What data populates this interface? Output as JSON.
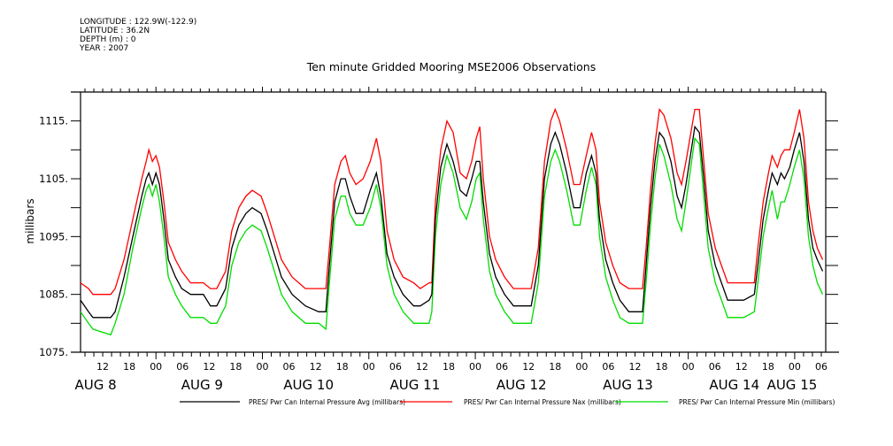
{
  "metadata": {
    "longitude": "LONGITUDE : 122.9W(-122.9)",
    "latitude": "LATITUDE : 36.2N",
    "depth": "DEPTH (m) : 0",
    "year": "YEAR : 2007"
  },
  "chart_data": {
    "type": "line",
    "title": "Ten minute Gridded Mooring MSE2006 Observations",
    "xlabel": "",
    "ylabel": "millibars",
    "x_units": "hours since Aug 8 00:00",
    "xlim": [
      7,
      175
    ],
    "ylim": [
      1075,
      1120
    ],
    "grid": false,
    "yticks": [
      1075,
      1085,
      1095,
      1105,
      1115
    ],
    "ytick_labels": [
      "1075.",
      "1085.",
      "1095.",
      "1105.",
      "1115."
    ],
    "xticks": [
      12,
      18,
      24,
      30,
      36,
      42,
      48,
      54,
      60,
      66,
      72,
      78,
      84,
      90,
      96,
      102,
      108,
      114,
      120,
      126,
      132,
      138,
      144,
      150,
      156,
      162,
      168,
      174
    ],
    "xtick_labels": [
      "12",
      "18",
      "00",
      "06",
      "12",
      "18",
      "00",
      "06",
      "12",
      "18",
      "00",
      "06",
      "12",
      "18",
      "00",
      "06",
      "12",
      "18",
      "00",
      "06",
      "12",
      "18",
      "00",
      "06",
      "12",
      "18",
      "00",
      "06"
    ],
    "day_labels": [
      {
        "hour": 12,
        "label": "AUG  8"
      },
      {
        "hour": 36,
        "label": "AUG  9"
      },
      {
        "hour": 60,
        "label": "AUG 10"
      },
      {
        "hour": 84,
        "label": "AUG 11"
      },
      {
        "hour": 108,
        "label": "AUG 12"
      },
      {
        "hour": 132,
        "label": "AUG 13"
      },
      {
        "hour": 156,
        "label": "AUG 14"
      },
      {
        "hour": 169,
        "label": "AUG 15"
      }
    ],
    "legend_position": "bottom",
    "series": [
      {
        "name": "PRES/ Pwr Can Internal Pressure Avg (millibars)",
        "color": "#000000",
        "x": [
          7,
          8.8,
          9.8,
          13.8,
          14.8,
          16.8,
          18.8,
          20.8,
          21.8,
          22.4,
          23.2,
          24,
          24.8,
          25.8,
          26.8,
          28.4,
          29.8,
          31.8,
          34.7,
          36.3,
          37.7,
          39.7,
          41.1,
          42.7,
          44.3,
          45.7,
          47.7,
          49.1,
          50.7,
          52.3,
          54.7,
          57.7,
          60.7,
          62.3,
          63.1,
          64.3,
          65.7,
          66.7,
          67.7,
          69.1,
          70.7,
          72.3,
          73.7,
          74.7,
          76.1,
          77.7,
          79.7,
          82.1,
          83.6,
          85.6,
          86.2,
          87,
          88.2,
          89.6,
          91,
          92.6,
          94,
          95.2,
          96.2,
          97,
          97.8,
          99.2,
          100.6,
          102.6,
          104.6,
          108.6,
          110.2,
          111.6,
          113,
          114,
          115,
          116.6,
          118.2,
          119.6,
          121,
          122.2,
          123.2,
          124,
          125.4,
          127,
          128.6,
          130.6,
          133.7,
          134.5,
          135.5,
          136.5,
          137.5,
          138.5,
          140.1,
          141.5,
          142.5,
          143.5,
          145.5,
          146.5,
          147.5,
          148.5,
          150.1,
          151.5,
          152.9,
          156.5,
          158.9,
          159.7,
          160.9,
          162.1,
          162.9,
          164.1,
          164.9,
          165.7,
          166.9,
          167.9,
          169.1,
          170.1,
          171.1,
          172.1,
          173.1,
          174.3
        ],
        "values": [
          1084,
          1082,
          1081,
          1081,
          1082,
          1088,
          1095,
          1102,
          1105,
          1106,
          1104,
          1106,
          1104,
          1098,
          1091,
          1088,
          1086,
          1085,
          1085,
          1083,
          1083,
          1086,
          1093,
          1097,
          1099,
          1100,
          1099,
          1096,
          1092,
          1088,
          1085,
          1083,
          1082,
          1082,
          1090,
          1101,
          1105,
          1105,
          1102,
          1099,
          1099,
          1103,
          1106,
          1102,
          1092,
          1088,
          1085,
          1083,
          1083,
          1084,
          1085,
          1098,
          1107,
          1111,
          1108,
          1103,
          1102,
          1105,
          1108,
          1108,
          1101,
          1092,
          1088,
          1085,
          1083,
          1083,
          1090,
          1105,
          1111,
          1113,
          1111,
          1106,
          1100,
          1100,
          1106,
          1109,
          1106,
          1098,
          1091,
          1087,
          1084,
          1082,
          1082,
          1090,
          1100,
          1108,
          1113,
          1112,
          1108,
          1102,
          1100,
          1104,
          1114,
          1113,
          1105,
          1096,
          1090,
          1087,
          1084,
          1084,
          1085,
          1090,
          1098,
          1103,
          1106,
          1104,
          1106,
          1105,
          1107,
          1110,
          1113,
          1108,
          1098,
          1093,
          1091,
          1089
        ]
      },
      {
        "name": "PRES/ Pwr Can Internal Pressure Nax (millibars)",
        "color": "#ff0000",
        "x": [
          7,
          8.8,
          9.8,
          13.8,
          14.8,
          16.8,
          18.8,
          20.8,
          21.8,
          22.4,
          23.2,
          24,
          24.8,
          25.8,
          26.8,
          28.4,
          29.8,
          31.8,
          34.7,
          36.3,
          37.7,
          39.7,
          41.1,
          42.7,
          44.3,
          45.7,
          47.7,
          49.1,
          50.7,
          52.3,
          54.7,
          57.7,
          60.7,
          62.3,
          63.1,
          64.3,
          65.7,
          66.7,
          67.7,
          69.1,
          70.7,
          72.3,
          73.7,
          74.7,
          76.1,
          77.7,
          79.7,
          82.1,
          83.6,
          85.6,
          86.2,
          87,
          88.2,
          89.6,
          91,
          92.6,
          94,
          95.2,
          96.2,
          97,
          97.8,
          99.2,
          100.6,
          102.6,
          104.6,
          108.6,
          110.2,
          111.6,
          113,
          114,
          115,
          116.6,
          118.2,
          119.6,
          121,
          122.2,
          123.2,
          124,
          125.4,
          127,
          128.6,
          130.6,
          133.7,
          134.5,
          135.5,
          136.5,
          137.5,
          138.5,
          140.1,
          141.5,
          142.5,
          143.5,
          145.5,
          146.5,
          147.5,
          148.5,
          150.1,
          151.5,
          152.9,
          156.5,
          158.9,
          159.7,
          160.9,
          162.1,
          162.9,
          164.1,
          164.9,
          165.7,
          166.9,
          167.9,
          169.1,
          170.1,
          171.1,
          172.1,
          173.1,
          174.3
        ],
        "values": [
          1087,
          1086,
          1085,
          1085,
          1086,
          1091,
          1098,
          1105,
          1108,
          1110,
          1108,
          1109,
          1107,
          1101,
          1094,
          1091,
          1089,
          1087,
          1087,
          1086,
          1086,
          1089,
          1096,
          1100,
          1102,
          1103,
          1102,
          1099,
          1095,
          1091,
          1088,
          1086,
          1086,
          1086,
          1093,
          1104,
          1108,
          1109,
          1106,
          1104,
          1105,
          1108,
          1112,
          1108,
          1096,
          1091,
          1088,
          1087,
          1086,
          1087,
          1087,
          1101,
          1110,
          1115,
          1113,
          1106,
          1105,
          1108,
          1112,
          1114,
          1105,
          1095,
          1091,
          1088,
          1086,
          1086,
          1093,
          1108,
          1115,
          1117,
          1115,
          1110,
          1104,
          1104,
          1109,
          1113,
          1110,
          1101,
          1094,
          1090,
          1087,
          1086,
          1086,
          1093,
          1103,
          1111,
          1117,
          1116,
          1112,
          1106,
          1104,
          1108,
          1117,
          1117,
          1108,
          1099,
          1093,
          1090,
          1087,
          1087,
          1087,
          1093,
          1101,
          1106,
          1109,
          1107,
          1109,
          1110,
          1110,
          1113,
          1117,
          1112,
          1101,
          1096,
          1093,
          1091
        ]
      },
      {
        "name": "PRES/ Pwr Can Internal Pressure Min (millibars)",
        "color": "#00dd00",
        "x": [
          7,
          8.8,
          9.8,
          13.8,
          14.8,
          16.8,
          18.8,
          20.8,
          21.8,
          22.4,
          23.2,
          24,
          24.8,
          25.8,
          26.8,
          28.4,
          29.8,
          31.8,
          34.7,
          36.3,
          37.7,
          39.7,
          41.1,
          42.7,
          44.3,
          45.7,
          47.7,
          49.1,
          50.7,
          52.3,
          54.7,
          57.7,
          60.7,
          62.3,
          63.1,
          64.3,
          65.7,
          66.7,
          67.7,
          69.1,
          70.7,
          72.3,
          73.7,
          74.7,
          76.1,
          77.7,
          79.7,
          82.1,
          83.6,
          85.6,
          86.2,
          87,
          88.2,
          89.6,
          91,
          92.6,
          94,
          95.2,
          96.2,
          97,
          97.8,
          99.2,
          100.6,
          102.6,
          104.6,
          108.6,
          110.2,
          111.6,
          113,
          114,
          115,
          116.6,
          118.2,
          119.6,
          121,
          122.2,
          123.2,
          124,
          125.4,
          127,
          128.6,
          130.6,
          133.7,
          134.5,
          135.5,
          136.5,
          137.5,
          138.5,
          140.1,
          141.5,
          142.5,
          143.5,
          145.5,
          146.5,
          147.5,
          148.5,
          150.1,
          151.5,
          152.9,
          156.5,
          158.9,
          159.7,
          160.9,
          162.1,
          162.9,
          164.1,
          164.9,
          165.7,
          166.9,
          167.9,
          169.1,
          170.1,
          171.1,
          172.1,
          173.1,
          174.3
        ],
        "values": [
          1082,
          1080,
          1079,
          1078,
          1080,
          1085,
          1093,
          1100,
          1103,
          1104,
          1102,
          1104,
          1101,
          1095,
          1088,
          1085,
          1083,
          1081,
          1081,
          1080,
          1080,
          1083,
          1090,
          1094,
          1096,
          1097,
          1096,
          1093,
          1089,
          1085,
          1082,
          1080,
          1080,
          1079,
          1087,
          1098,
          1102,
          1102,
          1099,
          1097,
          1097,
          1100,
          1104,
          1100,
          1090,
          1085,
          1082,
          1080,
          1080,
          1080,
          1082,
          1095,
          1104,
          1109,
          1106,
          1100,
          1098,
          1101,
          1105,
          1106,
          1098,
          1089,
          1085,
          1082,
          1080,
          1080,
          1087,
          1102,
          1108,
          1110,
          1108,
          1103,
          1097,
          1097,
          1103,
          1107,
          1104,
          1095,
          1088,
          1084,
          1081,
          1080,
          1080,
          1087,
          1097,
          1105,
          1111,
          1109,
          1104,
          1098,
          1096,
          1101,
          1112,
          1111,
          1102,
          1093,
          1087,
          1084,
          1081,
          1081,
          1082,
          1087,
          1095,
          1100,
          1103,
          1098,
          1101,
          1101,
          1104,
          1107,
          1110,
          1105,
          1095,
          1090,
          1087,
          1085
        ]
      }
    ]
  }
}
